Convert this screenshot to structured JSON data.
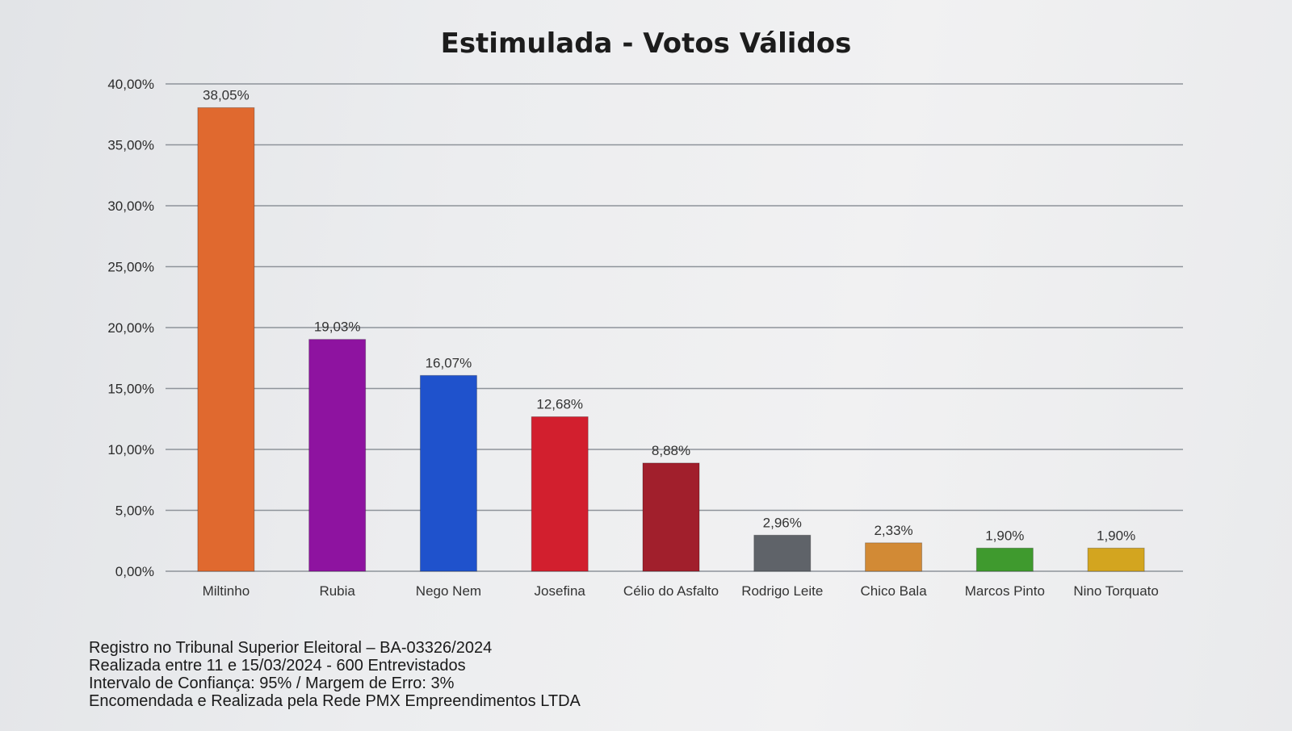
{
  "title": "Estimulada - Votos Válidos",
  "chart_data": {
    "type": "bar",
    "title": "Estimulada - Votos Válidos",
    "xlabel": "",
    "ylabel": "",
    "ylim": [
      0,
      40
    ],
    "grid": true,
    "y_ticks": [
      {
        "value": 0,
        "label": "0,00%"
      },
      {
        "value": 5,
        "label": "5,00%"
      },
      {
        "value": 10,
        "label": "10,00%"
      },
      {
        "value": 15,
        "label": "15,00%"
      },
      {
        "value": 20,
        "label": "20,00%"
      },
      {
        "value": 25,
        "label": "25,00%"
      },
      {
        "value": 30,
        "label": "30,00%"
      },
      {
        "value": 35,
        "label": "35,00%"
      },
      {
        "value": 40,
        "label": "40,00%"
      }
    ],
    "categories": [
      "Miltinho",
      "Rubia",
      "Nego Nem",
      "Josefina",
      "Célio do Asfalto",
      "Rodrigo Leite",
      "Chico Bala",
      "Marcos Pinto",
      "Nino Torquato"
    ],
    "values": [
      38.05,
      19.03,
      16.07,
      12.68,
      8.88,
      2.96,
      2.33,
      1.9,
      1.9
    ],
    "value_labels": [
      "38,05%",
      "19,03%",
      "16,07%",
      "12,68%",
      "8,88%",
      "2,96%",
      "2,33%",
      "1,90%",
      "1,90%"
    ],
    "colors": [
      "#e0692f",
      "#8e13a0",
      "#1f52cc",
      "#d21f2e",
      "#a11f2c",
      "#5f6369",
      "#d28a35",
      "#3f9a2e",
      "#d3a51f"
    ]
  },
  "footnotes": {
    "line1": "Registro no Tribunal Superior Eleitoral – BA-03326/2024",
    "line2": "Realizada entre 11 e 15/03/2024 - 600 Entrevistados",
    "line3": "Intervalo de Confiança: 95% / Margem de Erro: 3%",
    "line4": "Encomendada e Realizada pela Rede PMX Empreendimentos LTDA"
  }
}
